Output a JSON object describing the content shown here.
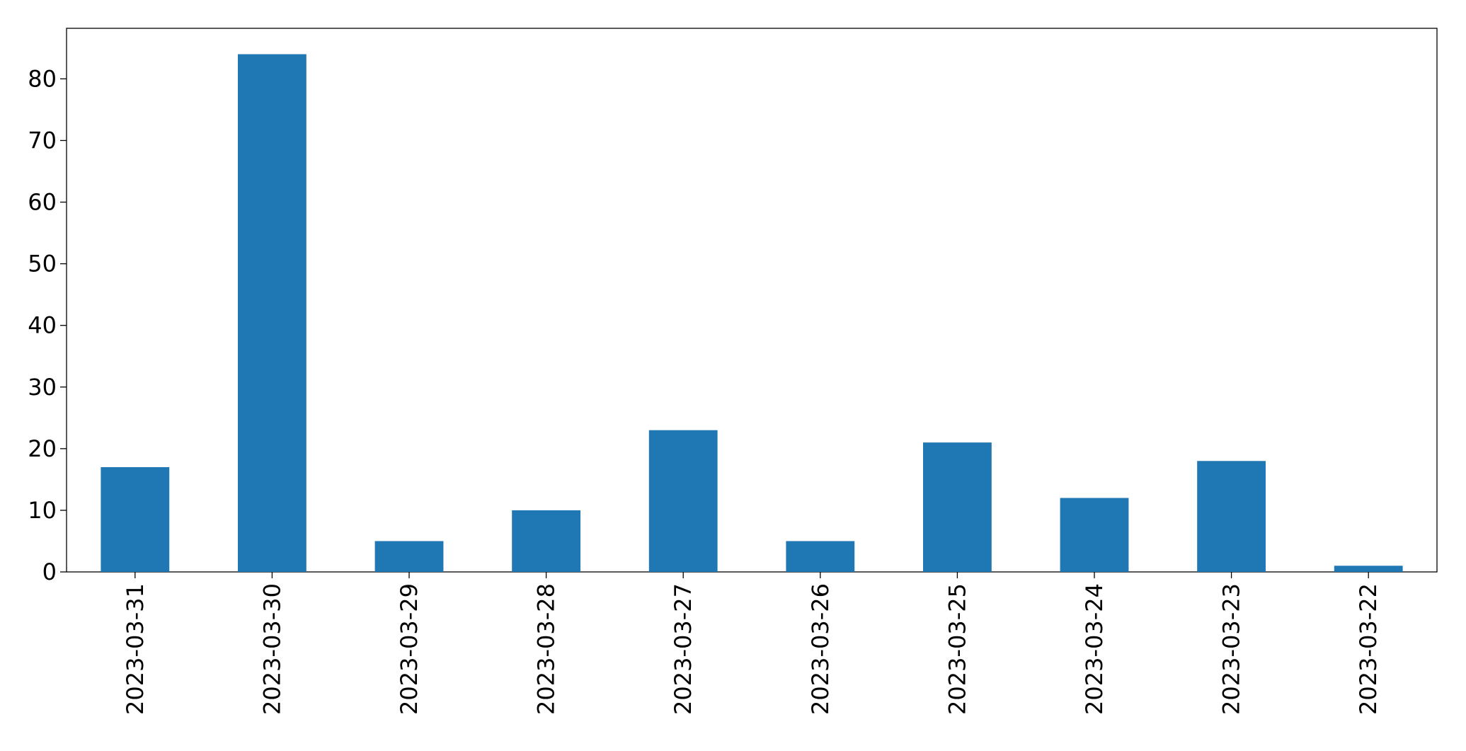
{
  "chart_data": {
    "type": "bar",
    "categories": [
      "2023-03-31",
      "2023-03-30",
      "2023-03-29",
      "2023-03-28",
      "2023-03-27",
      "2023-03-26",
      "2023-03-25",
      "2023-03-24",
      "2023-03-23",
      "2023-03-22"
    ],
    "values": [
      17,
      84,
      5,
      10,
      23,
      5,
      21,
      12,
      18,
      1
    ],
    "color": "#1f77b4",
    "ylim": [
      0,
      88.2
    ],
    "yticks": [
      0,
      10,
      20,
      30,
      40,
      50,
      60,
      70,
      80
    ],
    "grid": false
  }
}
